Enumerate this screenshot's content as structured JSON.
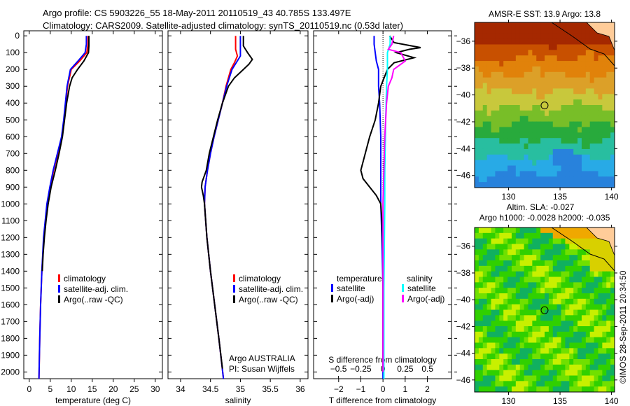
{
  "title_line1": "Argo profile: CS 5903226_55 18-May-2011 20110519_43 40.785S 133.497E",
  "title_line2": "Climatology: CARS2009. Satellite-adjusted climatology: synTS_20110519.nc (0.53d later)",
  "credit": "Argo AUSTRALIA",
  "pi": "PI: Susan Wijffels",
  "copyright": "©IMOS 28-Sep-2011 20:34:50",
  "colors": {
    "climatology": "#ff0000",
    "satellite": "#0000ff",
    "argo": "#000000",
    "sal_satellite": "#00ffff",
    "sal_argo": "#ff00ff"
  },
  "chart_data": [
    {
      "type": "line",
      "id": "temp",
      "xlabel": "temperature (deg C)",
      "ylabel": "",
      "xlim": [
        -1.3,
        31.7
      ],
      "ylim": [
        2040,
        -30
      ],
      "xticks": [
        0,
        5,
        10,
        15,
        20,
        25,
        30
      ],
      "yticks": [
        0,
        100,
        200,
        300,
        400,
        500,
        600,
        700,
        800,
        900,
        1000,
        1100,
        1200,
        1300,
        1400,
        1500,
        1600,
        1700,
        1800,
        1900,
        2000
      ],
      "legend": [
        "climatology",
        "satellite-adj. clim.",
        "Argo(..raw -QC)"
      ],
      "series": [
        {
          "name": "climatology",
          "color": "#ff0000",
          "depth": [
            0,
            50,
            100,
            150,
            200,
            300,
            400,
            500,
            600,
            700,
            800,
            900,
            1000,
            1200,
            1400,
            1600,
            1800,
            2050
          ],
          "values": [
            14,
            14,
            13.7,
            12,
            10,
            9.1,
            8.7,
            8.3,
            7.8,
            6.8,
            5.8,
            5.0,
            4.3,
            3.5,
            3.0,
            2.7,
            2.5,
            2.3
          ]
        },
        {
          "name": "satellite-adj. clim.",
          "color": "#0000ff",
          "depth": [
            0,
            50,
            100,
            150,
            200,
            300,
            400,
            500,
            600,
            700,
            800,
            900,
            1000,
            1200,
            1400,
            1600,
            1800,
            2050
          ],
          "values": [
            13.6,
            13.6,
            13.3,
            11.6,
            9.8,
            9.0,
            8.6,
            8.2,
            7.7,
            6.7,
            5.7,
            4.9,
            4.2,
            3.4,
            3.0,
            2.7,
            2.5,
            2.3
          ]
        },
        {
          "name": "Argo(..raw -QC)",
          "color": "#000000",
          "depth": [
            0,
            60,
            100,
            150,
            200,
            250,
            300,
            400,
            500,
            600,
            700,
            800,
            900,
            1000,
            1100,
            1200,
            1300,
            1400
          ],
          "values": [
            14.2,
            14.2,
            14.1,
            13,
            11.5,
            10.2,
            9.6,
            8.9,
            8.4,
            7.9,
            7.1,
            6.2,
            5.2,
            4.5,
            4.0,
            3.6,
            3.3,
            3.1
          ]
        }
      ]
    },
    {
      "type": "line",
      "id": "sal",
      "xlabel": "salinity",
      "xlim": [
        33.79,
        36.13
      ],
      "ylim": [
        2040,
        -30
      ],
      "xticks": [
        34,
        34.5,
        35,
        35.5,
        36
      ],
      "legend": [
        "climatology",
        "satellite-adj. clim.",
        "Argo(..raw -QC)"
      ],
      "series": [
        {
          "name": "climatology",
          "color": "#ff0000",
          "depth": [
            0,
            80,
            120,
            160,
            200,
            300,
            400,
            500,
            600,
            700,
            800,
            900,
            1000,
            1200,
            1400,
            1600,
            1800,
            2050
          ],
          "values": [
            34.92,
            34.92,
            34.95,
            34.9,
            34.84,
            34.76,
            34.7,
            34.63,
            34.56,
            34.5,
            34.45,
            34.41,
            34.4,
            34.44,
            34.5,
            34.57,
            34.64,
            34.72
          ]
        },
        {
          "name": "satellite-adj. clim.",
          "color": "#0000ff",
          "depth": [
            0,
            80,
            120,
            160,
            200,
            300,
            400,
            500,
            600,
            700,
            800,
            900,
            1000,
            1200,
            1400,
            1600,
            1800,
            2050
          ],
          "values": [
            35.0,
            35.0,
            35.0,
            34.93,
            34.86,
            34.77,
            34.7,
            34.63,
            34.56,
            34.5,
            34.45,
            34.41,
            34.4,
            34.44,
            34.5,
            34.57,
            34.64,
            34.72
          ]
        },
        {
          "name": "Argo(..raw -QC)",
          "color": "#000000",
          "depth": [
            0,
            60,
            100,
            140,
            170,
            200,
            250,
            300,
            400,
            500,
            600,
            700,
            800,
            870,
            900,
            950,
            1000,
            1200,
            1400,
            1600,
            1800,
            1980
          ],
          "values": [
            35.05,
            35.05,
            35.12,
            35.2,
            35.14,
            35.05,
            34.9,
            34.8,
            34.7,
            34.62,
            34.55,
            34.48,
            34.43,
            34.36,
            34.35,
            34.38,
            34.4,
            34.44,
            34.5,
            34.57,
            34.64,
            34.7
          ]
        }
      ]
    },
    {
      "type": "line",
      "id": "diff",
      "xlabel": "T difference from climatology",
      "x2label": "S difference from climatology",
      "xlim": [
        -3.13,
        3.09
      ],
      "x2lim": [
        -0.78,
        0.77
      ],
      "ylim": [
        2040,
        -30
      ],
      "xticks": [
        -2,
        -1,
        0,
        1,
        2
      ],
      "x2ticks": [
        "-0.5",
        "-0.25",
        "0",
        "0.25",
        "0.5"
      ],
      "x2tickvals": [
        -0.5,
        -0.25,
        0,
        0.25,
        0.5
      ],
      "legend_t": {
        "title": "temperature",
        "items": [
          "satellite",
          "Argo(-adj)"
        ]
      },
      "legend_s": {
        "title": "salinity",
        "items": [
          "satellite",
          "Argo(-adj)"
        ]
      },
      "series": [
        {
          "name": "T satellite",
          "axis": "T",
          "color": "#0000ff",
          "depth": [
            0,
            50,
            100,
            150,
            200,
            300,
            400,
            600,
            800,
            900,
            1000,
            1200,
            1500,
            1800,
            2050
          ],
          "values": [
            -0.4,
            -0.4,
            -0.35,
            -0.3,
            -0.2,
            -0.2,
            -0.15,
            -0.1,
            -0.1,
            -0.1,
            -0.1,
            -0.05,
            0,
            0,
            0
          ]
        },
        {
          "name": "T Argo(-adj)",
          "axis": "T",
          "color": "#000000",
          "depth": [
            0,
            40,
            70,
            80,
            100,
            130,
            160,
            200,
            300,
            400,
            500,
            600,
            700,
            800,
            850,
            900,
            950,
            1000,
            1100,
            1300,
            1500,
            1800,
            2000
          ],
          "values": [
            0.3,
            0.5,
            1.7,
            1.2,
            0.6,
            1.4,
            0.5,
            0.2,
            -0.1,
            -0.2,
            -0.35,
            -0.6,
            -0.8,
            -1.0,
            -0.9,
            -0.6,
            -0.3,
            -0.1,
            -0.05,
            0,
            0,
            0,
            0
          ]
        },
        {
          "name": "S satellite",
          "axis": "S",
          "color": "#00ffff",
          "depth": [
            0,
            50,
            100,
            150,
            200,
            300,
            500,
            800,
            1000,
            1500,
            2050
          ],
          "values": [
            0.08,
            0.08,
            0.05,
            0.05,
            0.05,
            0.04,
            0.03,
            0.02,
            0.02,
            0.01,
            0.01
          ]
        },
        {
          "name": "S Argo(-adj)",
          "axis": "S",
          "color": "#ff00ff",
          "depth": [
            0,
            50,
            80,
            100,
            150,
            200,
            250,
            300,
            400,
            600,
            800,
            1000,
            1500,
            2000
          ],
          "values": [
            0.12,
            0.1,
            0.06,
            0.2,
            0.25,
            0.12,
            0.1,
            0.06,
            0.04,
            0.02,
            0.01,
            0.0,
            0.0,
            0.0
          ]
        }
      ]
    },
    {
      "type": "heatmap",
      "id": "sst",
      "title": "AMSR-E SST: 13.9 Argo: 13.8",
      "xlim": [
        126.7,
        140.3
      ],
      "ylim": [
        -46.9,
        -34.6
      ],
      "xticks": [
        130,
        135,
        140
      ],
      "yticks": [
        -36,
        -38,
        -40,
        -42,
        -44,
        -46
      ],
      "marker": {
        "lon": 133.497,
        "lat": -40.785
      }
    },
    {
      "type": "heatmap",
      "id": "sla",
      "title": "Altim. SLA: -0.027",
      "subtitle": "Argo h1000: -0.0028 h2000: -0.035",
      "xlim": [
        126.7,
        140.3
      ],
      "ylim": [
        -46.9,
        -34.6
      ],
      "xticks": [
        130,
        135,
        140
      ],
      "yticks": [
        -36,
        -38,
        -40,
        -42,
        -44,
        -46
      ],
      "marker": {
        "lon": 133.497,
        "lat": -40.785
      }
    }
  ]
}
